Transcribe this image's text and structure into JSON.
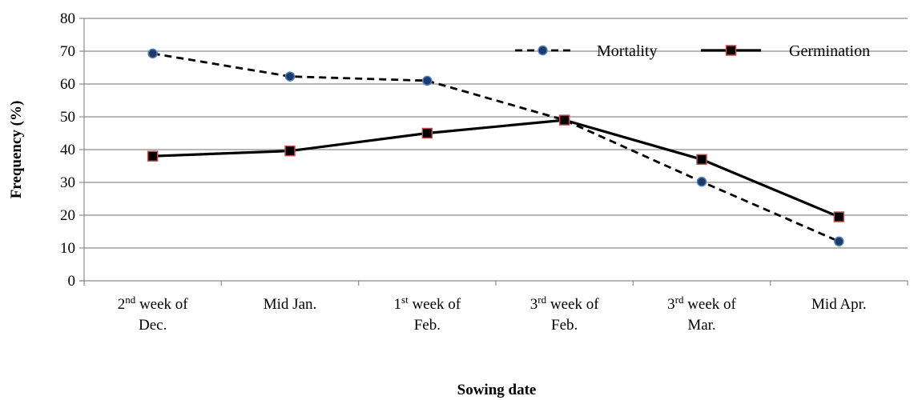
{
  "chart_data": {
    "type": "line",
    "categories": [
      {
        "base": "2",
        "sup": "nd",
        "rest": " week of",
        "line2": "Dec."
      },
      {
        "base": "Mid Jan.",
        "sup": "",
        "rest": "",
        "line2": ""
      },
      {
        "base": "1",
        "sup": "st",
        "rest": " week of",
        "line2": "Feb."
      },
      {
        "base": "3",
        "sup": "rd",
        "rest": " week of",
        "line2": "Feb."
      },
      {
        "base": "3",
        "sup": "rd",
        "rest": " week of",
        "line2": "Mar."
      },
      {
        "base": "Mid Apr.",
        "sup": "",
        "rest": "",
        "line2": ""
      }
    ],
    "series": [
      {
        "name": "Mortality",
        "values": [
          69.3,
          62.3,
          61,
          49,
          30.2,
          12
        ],
        "style": "dashed",
        "marker": "circle",
        "marker_fill": "#1f3a68",
        "marker_stroke": "#4f81bd"
      },
      {
        "name": "Germination",
        "values": [
          38,
          39.6,
          45,
          49,
          37,
          19.5
        ],
        "style": "solid",
        "marker": "square",
        "marker_fill": "#000000",
        "marker_stroke": "#c0504d"
      }
    ],
    "ylim": [
      0,
      80
    ],
    "yticks": [
      0,
      10,
      20,
      30,
      40,
      50,
      60,
      70,
      80
    ],
    "ylabel": "Frequency (%)",
    "xlabel": "Sowing date",
    "grid": true,
    "legend_position": "top-right"
  }
}
